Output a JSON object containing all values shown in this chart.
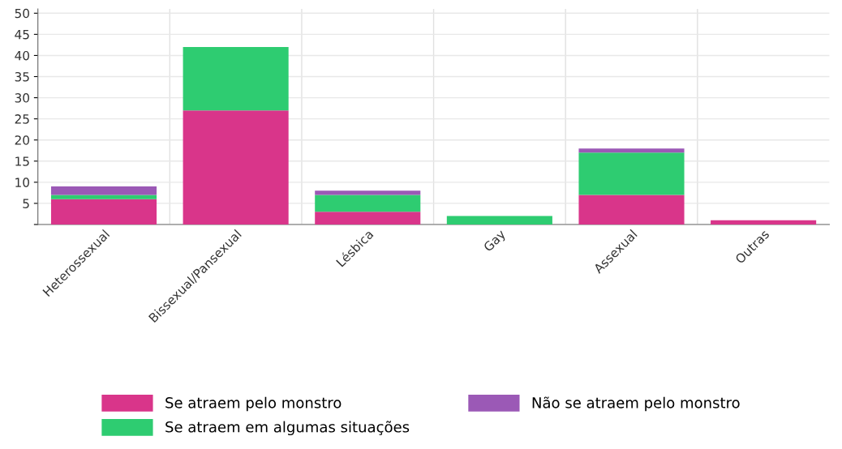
{
  "chart_data": {
    "type": "bar",
    "stacked": true,
    "categories": [
      "Heterossexual",
      "Bissexual/Pansexual",
      "Lésbica",
      "Gay",
      "Assexual",
      "Outras"
    ],
    "series": [
      {
        "name": "Se atraem pelo monstro",
        "color": "#d9358a",
        "values": [
          6,
          27,
          3,
          0,
          7,
          1
        ]
      },
      {
        "name": "Se atraem em algumas situações",
        "color": "#2ecc71",
        "values": [
          1,
          15,
          4,
          2,
          10,
          0
        ]
      },
      {
        "name": "Não se atraem pelo monstro",
        "color": "#9b59b6",
        "values": [
          2,
          0,
          1,
          0,
          1,
          0
        ]
      }
    ],
    "ylim": [
      0,
      51
    ],
    "yticks": [
      {
        "value": 0,
        "label": null
      },
      5,
      10,
      15,
      20,
      25,
      30,
      35,
      40,
      45,
      50
    ],
    "grid": true,
    "legend": "bottom"
  }
}
